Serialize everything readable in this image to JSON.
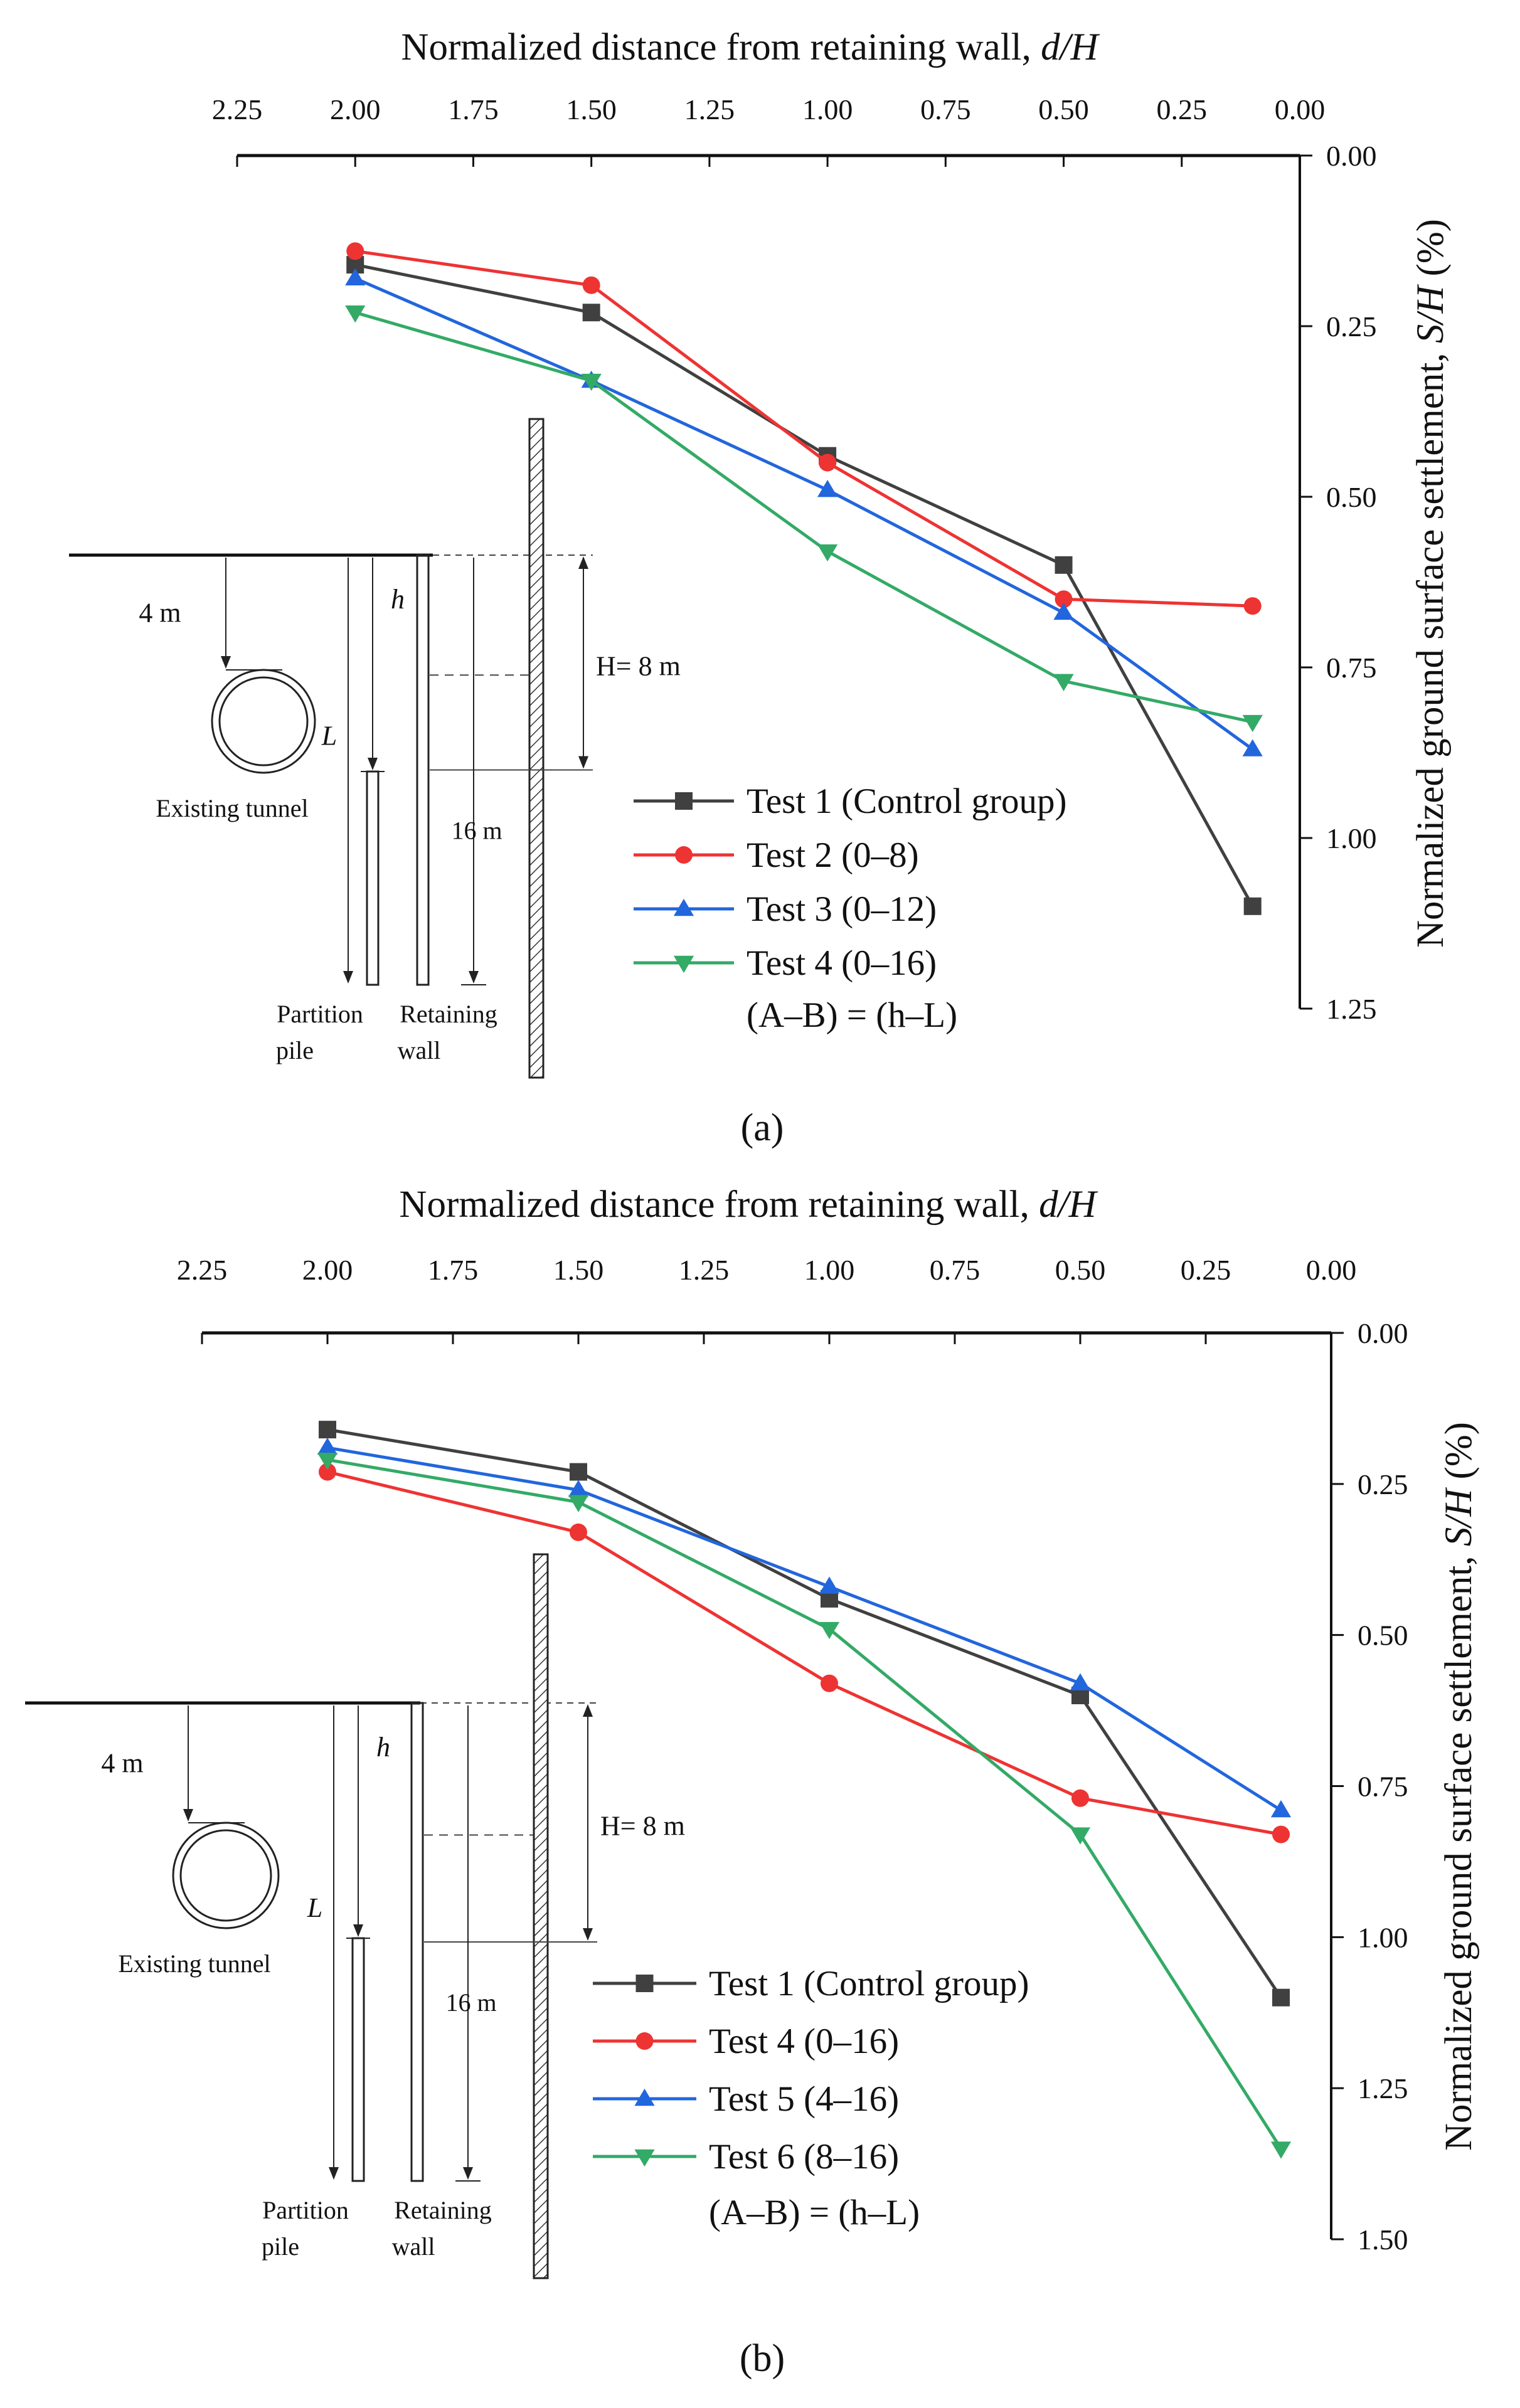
{
  "chart_data": [
    {
      "type": "line",
      "panel_label": "a",
      "title": "",
      "xlabel_prefix": "Normalized distance from retaining wall, ",
      "xlabel_var": "d/H",
      "ylabel_prefix": "Normalized ground surface settlement, ",
      "ylabel_var": "S/H",
      "ylabel_unit": " (%)",
      "x_axis_position": "top",
      "y_axis_position": "right",
      "xlim": [
        2.25,
        0.0
      ],
      "ylim": [
        0.0,
        1.25
      ],
      "y_inverted": true,
      "xticks": [
        "2.25",
        "2.00",
        "1.75",
        "1.50",
        "1.25",
        "1.00",
        "0.75",
        "0.50",
        "0.25",
        "0.00"
      ],
      "yticks": [
        "0.00",
        "0.25",
        "0.50",
        "0.75",
        "1.00",
        "1.25"
      ],
      "x": [
        2.0,
        1.5,
        1.0,
        0.5,
        0.1
      ],
      "series": [
        {
          "name": "Test 1 (Control group)",
          "color": "#404040",
          "marker": "square",
          "values": [
            0.16,
            0.23,
            0.44,
            0.6,
            1.1
          ]
        },
        {
          "name": "Test 2 (0–8)",
          "color": "#ee3333",
          "marker": "circle",
          "values": [
            0.14,
            0.19,
            0.45,
            0.65,
            0.66
          ]
        },
        {
          "name": "Test 3 (0–12)",
          "color": "#2266dd",
          "marker": "triangle-up",
          "values": [
            0.18,
            0.33,
            0.49,
            0.67,
            0.87
          ]
        },
        {
          "name": "Test 4 (0–16)",
          "color": "#33aa66",
          "marker": "triangle-down",
          "values": [
            0.23,
            0.33,
            0.58,
            0.77,
            0.83
          ]
        }
      ],
      "legend_note": "(A–B) = (h–L)",
      "legend_position": "lower-right",
      "inset": {
        "depth_4m": "4 m",
        "h": "h",
        "H_eq": "H= 8 m",
        "L": "L",
        "depth_16m": "16 m",
        "tunnel": "Existing tunnel",
        "partition_pile_1": "Partition",
        "partition_pile_2": "pile",
        "retaining_wall_1": "Retaining",
        "retaining_wall_2": "wall"
      },
      "caption": "(a)"
    },
    {
      "type": "line",
      "panel_label": "b",
      "title": "",
      "xlabel_prefix": "Normalized distance from retaining wall, ",
      "xlabel_var": "d/H",
      "ylabel_prefix": "Normalized ground surface settlement, ",
      "ylabel_var": "S/H",
      "ylabel_unit": " (%)",
      "x_axis_position": "top",
      "y_axis_position": "right",
      "xlim": [
        2.25,
        0.0
      ],
      "ylim": [
        0.0,
        1.5
      ],
      "y_inverted": true,
      "xticks": [
        "2.25",
        "2.00",
        "1.75",
        "1.50",
        "1.25",
        "1.00",
        "0.75",
        "0.50",
        "0.25",
        "0.00"
      ],
      "yticks": [
        "0.00",
        "0.25",
        "0.50",
        "0.75",
        "1.00",
        "1.25",
        "1.50"
      ],
      "x": [
        2.0,
        1.5,
        1.0,
        0.5,
        0.1
      ],
      "series": [
        {
          "name": "Test 1 (Control group)",
          "color": "#404040",
          "marker": "square",
          "values": [
            0.16,
            0.23,
            0.44,
            0.6,
            1.1
          ]
        },
        {
          "name": "Test 4 (0–16)",
          "color": "#ee3333",
          "marker": "circle",
          "values": [
            0.23,
            0.33,
            0.58,
            0.77,
            0.83
          ]
        },
        {
          "name": "Test 5 (4–16)",
          "color": "#2266dd",
          "marker": "triangle-up",
          "values": [
            0.19,
            0.26,
            0.42,
            0.58,
            0.79
          ]
        },
        {
          "name": "Test 6 (8–16)",
          "color": "#33aa66",
          "marker": "triangle-down",
          "values": [
            0.21,
            0.28,
            0.49,
            0.83,
            1.35
          ]
        }
      ],
      "legend_note": "(A–B) = (h–L)",
      "legend_position": "lower-right",
      "inset": {
        "depth_4m": "4 m",
        "h": "h",
        "H_eq": "H= 8 m",
        "L": "L",
        "depth_16m": "16 m",
        "tunnel": "Existing tunnel",
        "partition_pile_1": "Partition",
        "partition_pile_2": "pile",
        "retaining_wall_1": "Retaining",
        "retaining_wall_2": "wall"
      },
      "caption": "(b)"
    }
  ]
}
